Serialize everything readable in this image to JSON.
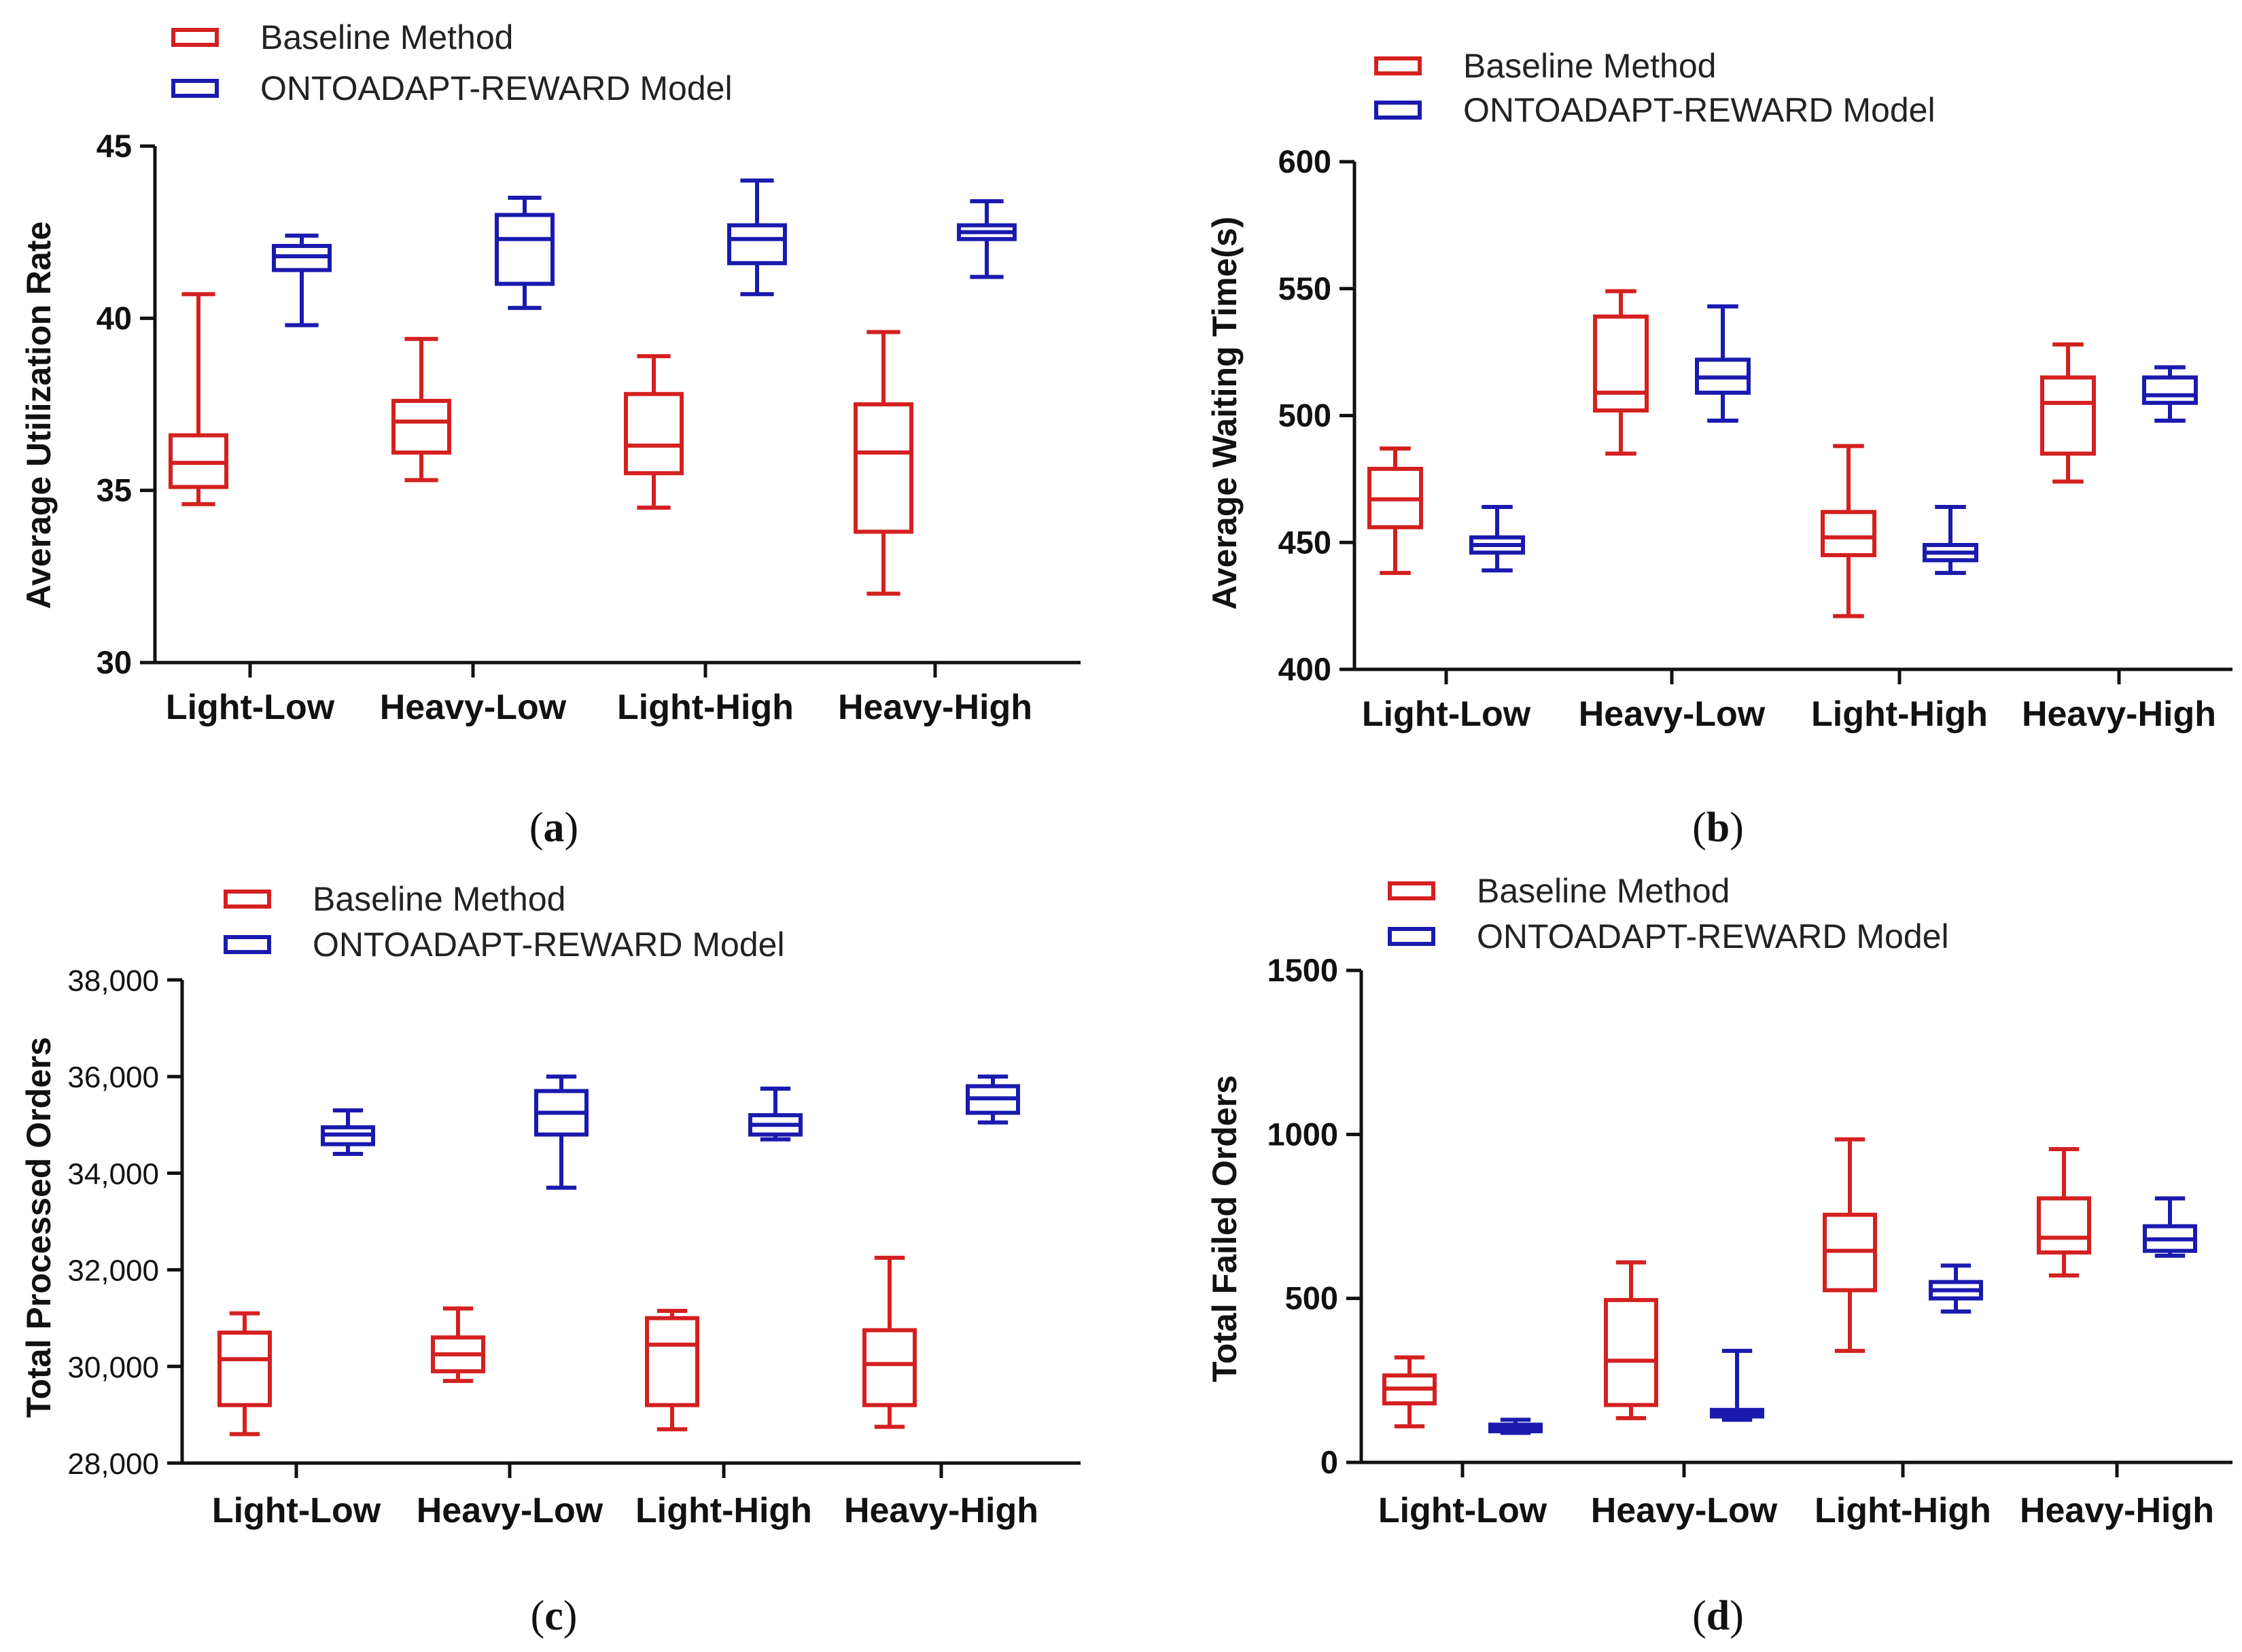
{
  "colors": {
    "baseline": "#d42020",
    "ontoadapt": "#1a1aaf",
    "axis": "#111111"
  },
  "chart_data": [
    {
      "panel": "(a)",
      "type": "box",
      "ylabel": "Average Utilization Rate",
      "ylim": [
        30,
        45
      ],
      "yticks": [
        "30",
        "35",
        "40",
        "45"
      ],
      "categories": [
        "Light-Low",
        "Heavy-Low",
        "Light-High",
        "Heavy-High"
      ],
      "legend": [
        "Baseline Method",
        "ONTOADAPT-REWARD Model"
      ],
      "series": [
        {
          "name": "Baseline Method",
          "color": "#d42020",
          "boxes": [
            {
              "min": 34.6,
              "q1": 35.1,
              "median": 35.8,
              "q3": 36.6,
              "max": 40.7
            },
            {
              "min": 35.3,
              "q1": 36.1,
              "median": 37.0,
              "q3": 37.6,
              "max": 39.4
            },
            {
              "min": 34.5,
              "q1": 35.5,
              "median": 36.3,
              "q3": 37.8,
              "max": 38.9
            },
            {
              "min": 32.0,
              "q1": 33.8,
              "median": 36.1,
              "q3": 37.5,
              "max": 39.6
            }
          ]
        },
        {
          "name": "ONTOADAPT-REWARD Model",
          "color": "#1a1aaf",
          "boxes": [
            {
              "min": 39.8,
              "q1": 41.4,
              "median": 41.8,
              "q3": 42.1,
              "max": 42.4
            },
            {
              "min": 40.3,
              "q1": 41.0,
              "median": 42.3,
              "q3": 43.0,
              "max": 43.5
            },
            {
              "min": 40.7,
              "q1": 41.6,
              "median": 42.3,
              "q3": 42.7,
              "max": 44.0
            },
            {
              "min": 41.2,
              "q1": 42.3,
              "median": 42.5,
              "q3": 42.7,
              "max": 43.4
            }
          ]
        }
      ]
    },
    {
      "panel": "(b)",
      "type": "box",
      "ylabel": "Average Waiting Time(s)",
      "ylim": [
        400,
        600
      ],
      "yticks": [
        "400",
        "450",
        "500",
        "550",
        "600"
      ],
      "categories": [
        "Light-Low",
        "Heavy-Low",
        "Light-High",
        "Heavy-High"
      ],
      "legend": [
        "Baseline Method",
        "ONTOADAPT-REWARD Model"
      ],
      "series": [
        {
          "name": "Baseline Method",
          "color": "#d42020",
          "boxes": [
            {
              "min": 438,
              "q1": 456,
              "median": 467,
              "q3": 479,
              "max": 487
            },
            {
              "min": 485,
              "q1": 502,
              "median": 509,
              "q3": 539,
              "max": 549
            },
            {
              "min": 421,
              "q1": 445,
              "median": 452,
              "q3": 462,
              "max": 488
            },
            {
              "min": 474,
              "q1": 485,
              "median": 505,
              "q3": 515,
              "max": 528
            }
          ]
        },
        {
          "name": "ONTOADAPT-REWARD Model",
          "color": "#1a1aaf",
          "boxes": [
            {
              "min": 439,
              "q1": 446,
              "median": 449,
              "q3": 452,
              "max": 464
            },
            {
              "min": 498,
              "q1": 509,
              "median": 515,
              "q3": 522,
              "max": 543
            },
            {
              "min": 438,
              "q1": 443,
              "median": 446,
              "q3": 449,
              "max": 464
            },
            {
              "min": 498,
              "q1": 505,
              "median": 508,
              "q3": 515,
              "max": 519
            }
          ]
        }
      ]
    },
    {
      "panel": "(c)",
      "type": "box",
      "ylabel": "Total Processed Orders",
      "ylim": [
        28000,
        38000
      ],
      "yticks": [
        "28,000",
        "30,000",
        "32,000",
        "34,000",
        "36,000",
        "38,000"
      ],
      "categories": [
        "Light-Low",
        "Heavy-Low",
        "Light-High",
        "Heavy-High"
      ],
      "legend": [
        "Baseline Method",
        "ONTOADAPT-REWARD Model"
      ],
      "series": [
        {
          "name": "Baseline Method",
          "color": "#d42020",
          "boxes": [
            {
              "min": 28600,
              "q1": 29200,
              "median": 30150,
              "q3": 30700,
              "max": 31100
            },
            {
              "min": 29700,
              "q1": 29900,
              "median": 30250,
              "q3": 30600,
              "max": 31200
            },
            {
              "min": 28700,
              "q1": 29200,
              "median": 30450,
              "q3": 31000,
              "max": 31150
            },
            {
              "min": 28750,
              "q1": 29200,
              "median": 30050,
              "q3": 30750,
              "max": 32250
            }
          ]
        },
        {
          "name": "ONTOADAPT-REWARD Model",
          "color": "#1a1aaf",
          "boxes": [
            {
              "min": 34400,
              "q1": 34600,
              "median": 34800,
              "q3": 34950,
              "max": 35300
            },
            {
              "min": 33700,
              "q1": 34800,
              "median": 35250,
              "q3": 35700,
              "max": 36000
            },
            {
              "min": 34700,
              "q1": 34800,
              "median": 35000,
              "q3": 35200,
              "max": 35750
            },
            {
              "min": 35050,
              "q1": 35250,
              "median": 35550,
              "q3": 35800,
              "max": 36000
            }
          ]
        }
      ]
    },
    {
      "panel": "(d)",
      "type": "box",
      "ylabel": "Total Failed Orders",
      "ylim": [
        0,
        1500
      ],
      "yticks": [
        "0",
        "500",
        "1000",
        "1500"
      ],
      "categories": [
        "Light-Low",
        "Heavy-Low",
        "Light-High",
        "Heavy-High"
      ],
      "legend": [
        "Baseline Method",
        "ONTOADAPT-REWARD Model"
      ],
      "series": [
        {
          "name": "Baseline Method",
          "color": "#d42020",
          "boxes": [
            {
              "min": 110,
              "q1": 180,
              "median": 225,
              "q3": 265,
              "max": 320
            },
            {
              "min": 135,
              "q1": 175,
              "median": 310,
              "q3": 495,
              "max": 610
            },
            {
              "min": 340,
              "q1": 525,
              "median": 645,
              "q3": 755,
              "max": 985
            },
            {
              "min": 570,
              "q1": 640,
              "median": 685,
              "q3": 805,
              "max": 955
            }
          ]
        },
        {
          "name": "ONTOADAPT-REWARD Model",
          "color": "#1a1aaf",
          "boxes": [
            {
              "min": 90,
              "q1": 95,
              "median": 105,
              "q3": 115,
              "max": 130
            },
            {
              "min": 130,
              "q1": 140,
              "median": 150,
              "q3": 160,
              "max": 340
            },
            {
              "min": 460,
              "q1": 500,
              "median": 525,
              "q3": 550,
              "max": 600
            },
            {
              "min": 630,
              "q1": 645,
              "median": 680,
              "q3": 720,
              "max": 805
            }
          ]
        }
      ]
    }
  ]
}
